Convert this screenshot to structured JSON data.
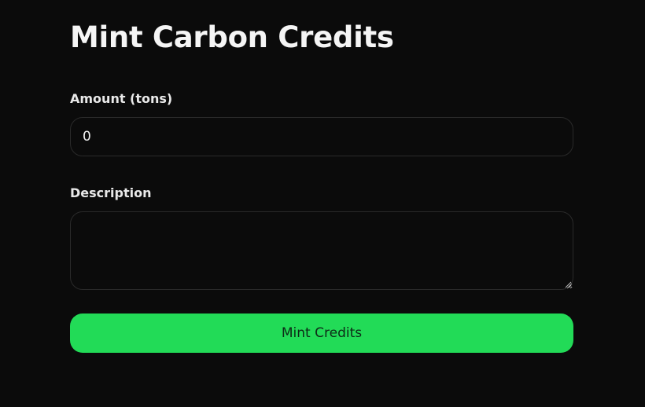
{
  "form": {
    "title": "Mint Carbon Credits",
    "amount": {
      "label": "Amount (tons)",
      "value": "0"
    },
    "description": {
      "label": "Description",
      "value": ""
    },
    "submit_label": "Mint Credits"
  },
  "colors": {
    "background": "#0b0b0b",
    "accent": "#22db57",
    "field_border": "#2a2a2a"
  }
}
